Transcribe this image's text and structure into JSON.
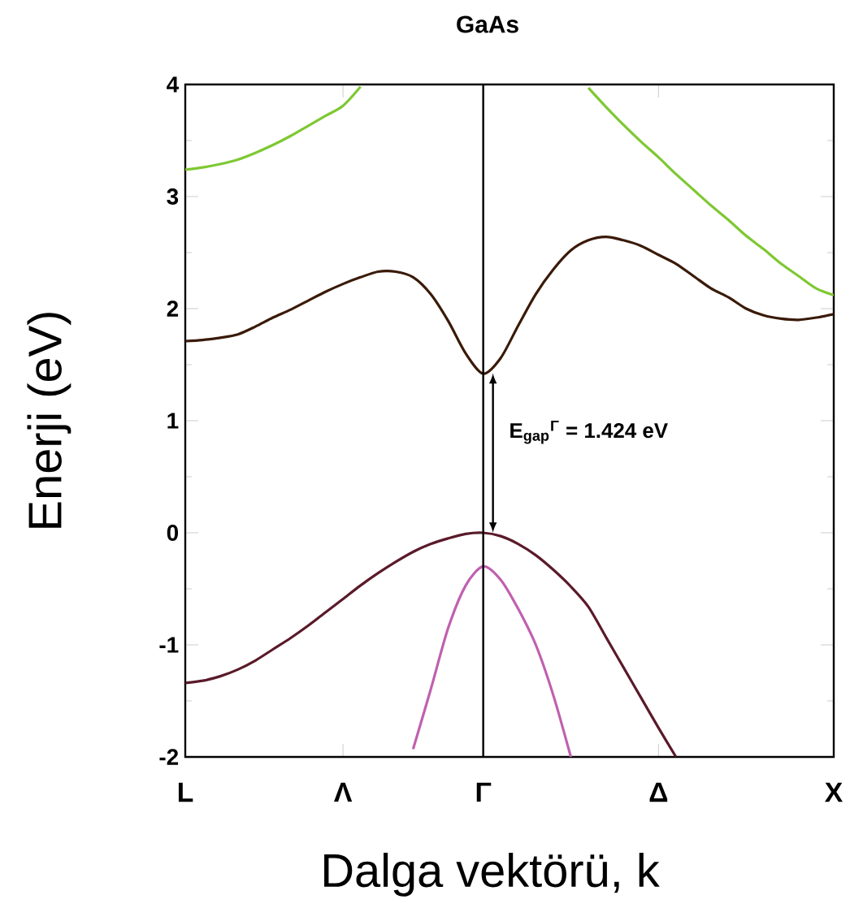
{
  "chart_data": {
    "type": "line",
    "title": "GaAs",
    "xlabel": "Dalga vektörü, k",
    "ylabel": "Enerji (eV)",
    "categories": [
      "L",
      null,
      null,
      null,
      null,
      null,
      null,
      null,
      null,
      "Λ",
      null,
      null,
      null,
      null,
      null,
      null,
      null,
      "Γ",
      null,
      null,
      null,
      null,
      null,
      null,
      null,
      null,
      null,
      "Δ",
      null,
      null,
      null,
      null,
      null,
      null,
      null,
      null,
      null,
      "X"
    ],
    "ylim": [
      -2,
      4
    ],
    "yticks": [
      -2,
      -1,
      0,
      1,
      2,
      3,
      4
    ],
    "grid": false,
    "marker": "none",
    "line_style": "solid",
    "ref_lines": [
      {
        "axis": "x",
        "value": "Γ",
        "color": "#000000"
      }
    ],
    "annotations": [
      {
        "text": "E$_{gap}$$^{Γ}$ = 1.424 eV",
        "x": "Γ",
        "y": 1.424
      }
    ],
    "series": [
      {
        "color": "#7ec832",
        "values": [
          3.24,
          3.26,
          3.29,
          3.33,
          3.39,
          3.46,
          3.54,
          3.63,
          3.72,
          3.81,
          3.98,
          null,
          null,
          null,
          null,
          null,
          null,
          null,
          null,
          null,
          null,
          null,
          null,
          null,
          null,
          null,
          null,
          null,
          null,
          null,
          null,
          null,
          null,
          null,
          null,
          null,
          null,
          null
        ]
      },
      {
        "color": "#7ec832",
        "values": [
          null,
          null,
          null,
          null,
          null,
          null,
          null,
          null,
          null,
          null,
          null,
          null,
          null,
          null,
          null,
          null,
          null,
          null,
          null,
          null,
          null,
          null,
          null,
          3.97,
          3.8,
          3.64,
          3.49,
          3.35,
          3.2,
          3.06,
          2.92,
          2.79,
          2.65,
          2.53,
          2.4,
          2.29,
          2.18,
          2.12
        ]
      },
      {
        "color": "#3a1a08",
        "values": [
          1.71,
          1.72,
          1.74,
          1.77,
          1.84,
          1.92,
          1.99,
          2.07,
          2.15,
          2.22,
          2.28,
          2.33,
          2.33,
          2.28,
          2.13,
          1.89,
          1.6,
          1.42,
          1.56,
          1.85,
          2.13,
          2.35,
          2.52,
          2.61,
          2.64,
          2.61,
          2.56,
          2.48,
          2.4,
          2.29,
          2.18,
          2.1,
          2.0,
          1.94,
          1.91,
          1.9,
          1.92,
          1.95
        ]
      },
      {
        "color": "#5a1a2a",
        "values": [
          -1.34,
          -1.32,
          -1.28,
          -1.22,
          -1.14,
          -1.04,
          -0.94,
          -0.83,
          -0.71,
          -0.59,
          -0.47,
          -0.36,
          -0.26,
          -0.17,
          -0.1,
          -0.05,
          -0.01,
          0,
          -0.03,
          -0.1,
          -0.2,
          -0.33,
          -0.48,
          -0.66,
          -0.93,
          -1.2,
          -1.47,
          -1.74,
          -2.0,
          null,
          null,
          null,
          null,
          null,
          null,
          null,
          null,
          null
        ]
      },
      {
        "color": "#c060b0",
        "values": [
          null,
          null,
          null,
          null,
          null,
          null,
          null,
          null,
          null,
          null,
          null,
          null,
          null,
          -1.93,
          -1.4,
          -0.85,
          -0.47,
          -0.3,
          -0.42,
          -0.68,
          -1.0,
          -1.45,
          -2.0,
          null,
          null,
          null,
          null,
          null,
          null,
          null,
          null,
          null,
          null,
          null,
          null,
          null,
          null,
          null
        ]
      }
    ]
  }
}
